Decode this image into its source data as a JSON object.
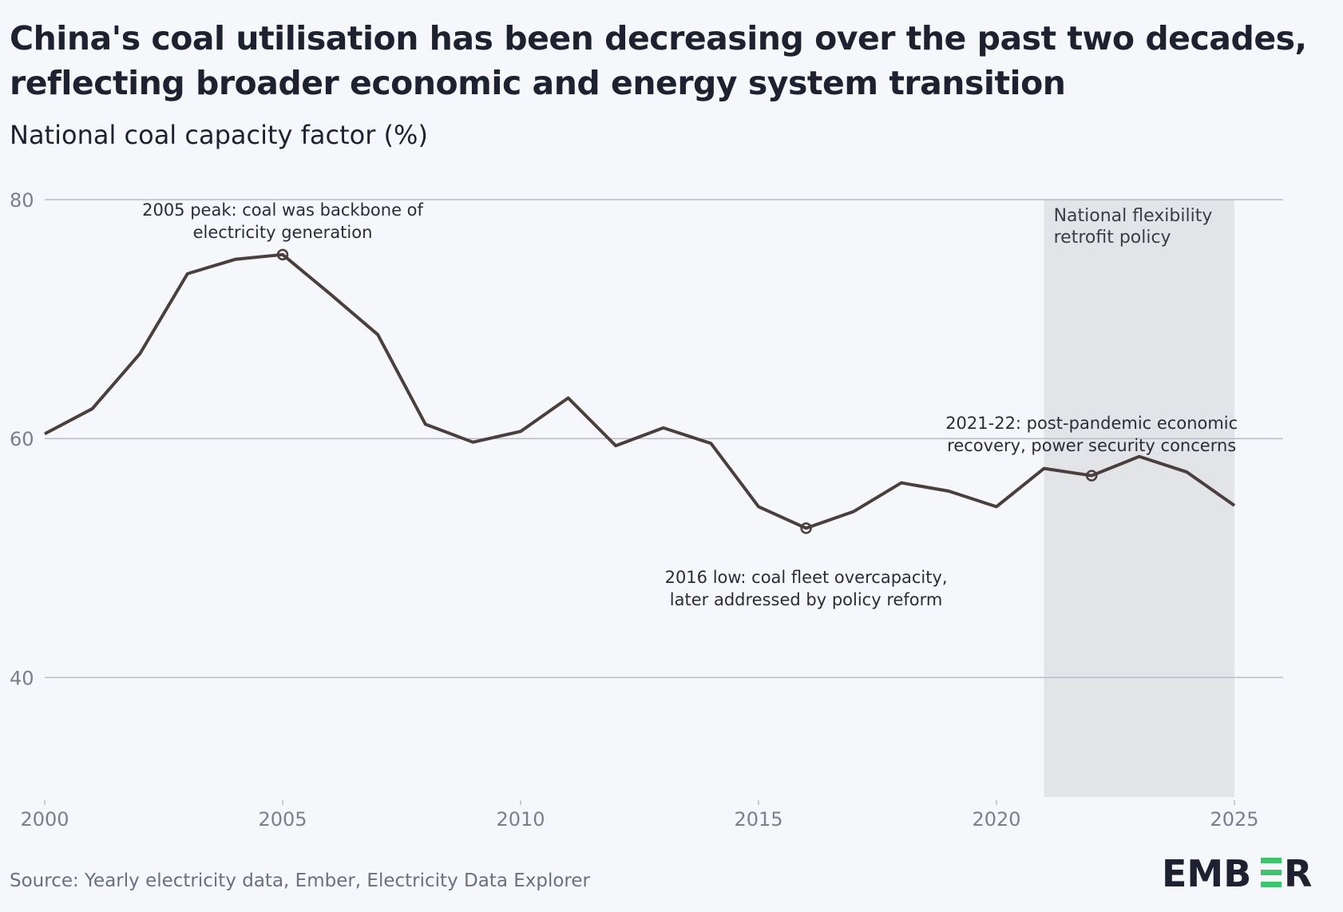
{
  "header": {
    "title": "China's coal utilisation has been decreasing over the past two decades, reflecting broader economic and energy system transition",
    "subtitle": "National coal capacity factor (%)"
  },
  "footer": {
    "source": "Source: Yearly electricity data, Ember, Electricity Data Explorer",
    "logo": "EMBER"
  },
  "colors": {
    "line": "#4a3f3c",
    "shade": "#e3e4e7",
    "grid": "#b9bcc6",
    "background": "#f5f7fb",
    "logo_accent": "#3ec46d"
  },
  "chart_data": {
    "type": "line",
    "title": "China's coal utilisation has been decreasing over the past two decades, reflecting broader economic and energy system transition",
    "ylabel": "National coal capacity factor (%)",
    "xlabel": "",
    "x": [
      2000,
      2001,
      2002,
      2003,
      2004,
      2005,
      2006,
      2007,
      2008,
      2009,
      2010,
      2011,
      2012,
      2013,
      2014,
      2015,
      2016,
      2017,
      2018,
      2019,
      2020,
      2021,
      2022,
      2023,
      2024,
      2025
    ],
    "series": [
      {
        "values": [
          60.4,
          62.5,
          67.1,
          73.8,
          75.0,
          75.4,
          72.1,
          68.7,
          61.2,
          59.7,
          60.6,
          63.4,
          59.4,
          60.9,
          59.6,
          54.3,
          52.5,
          53.9,
          56.3,
          55.6,
          54.3,
          57.5,
          56.9,
          58.5,
          57.2,
          54.4
        ]
      }
    ],
    "xlim": [
      2000,
      2026
    ],
    "ylim": [
      30,
      80
    ],
    "xticks": [
      "2000",
      "2005",
      "2010",
      "2015",
      "2020",
      "2025"
    ],
    "yticks": [
      "40",
      "60",
      "80"
    ],
    "grid": true,
    "shaded_region": {
      "from": 2021,
      "to": 2025,
      "label": [
        "National flexibility",
        "retrofit policy"
      ]
    },
    "annotations": [
      {
        "x": 2005,
        "lines": [
          "2005 peak: coal was backbone of",
          "electricity generation"
        ]
      },
      {
        "x": 2016,
        "lines": [
          "2016 low: coal fleet overcapacity,",
          "later addressed by policy reform"
        ]
      },
      {
        "x": 2022,
        "lines": [
          "2021-22: post-pandemic economic",
          "recovery, power security concerns"
        ]
      }
    ]
  }
}
